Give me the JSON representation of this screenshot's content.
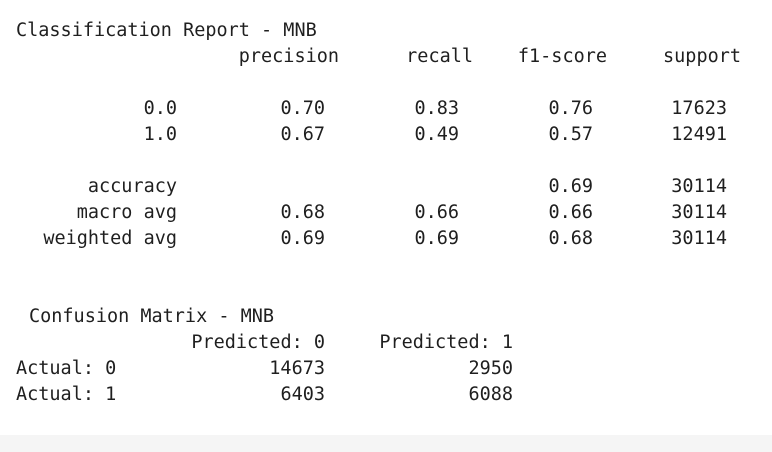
{
  "report": {
    "title": "Classification Report - MNB",
    "columns": [
      "precision",
      "recall",
      "f1-score",
      "support"
    ],
    "rows": [
      {
        "label": "0.0",
        "precision": "0.70",
        "recall": "0.83",
        "f1": "0.76",
        "support": "17623"
      },
      {
        "label": "1.0",
        "precision": "0.67",
        "recall": "0.49",
        "f1": "0.57",
        "support": "12491"
      },
      {
        "label": "accuracy",
        "precision": "",
        "recall": "",
        "f1": "0.69",
        "support": "30114"
      },
      {
        "label": "macro avg",
        "precision": "0.68",
        "recall": "0.66",
        "f1": "0.66",
        "support": "30114"
      },
      {
        "label": "weighted avg",
        "precision": "0.69",
        "recall": "0.69",
        "f1": "0.68",
        "support": "30114"
      }
    ]
  },
  "confusion": {
    "title": "Confusion Matrix - MNB",
    "columns": [
      "Predicted: 0",
      "Predicted: 1"
    ],
    "rows": [
      {
        "label": "Actual: 0",
        "values": [
          "14673",
          "2950"
        ]
      },
      {
        "label": "Actual: 1",
        "values": [
          "6403",
          "6088"
        ]
      }
    ]
  }
}
